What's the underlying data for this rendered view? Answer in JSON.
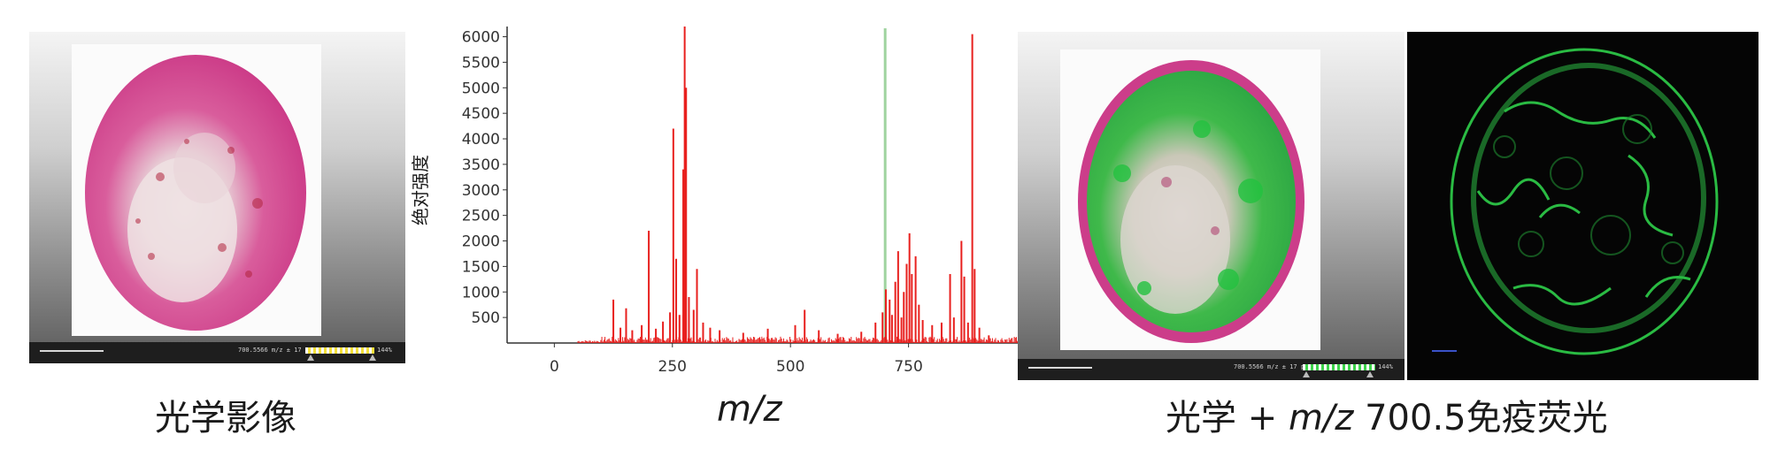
{
  "panels": {
    "optical": {
      "caption": "光学影像",
      "status_text": "700.5566 m/z ± 17 ppm",
      "colorbar_percent": "144%",
      "colorbar_gradient": [
        "#ffffff",
        "#f6e03a"
      ]
    },
    "overlay": {
      "caption_prefix": "光学 + ",
      "caption_mz": "m/z",
      "caption_suffix": " 700.5免疫荧光",
      "status_text": "700.5566 m/z ± 17 ppm",
      "colorbar_percent": "144%",
      "colorbar_gradient": [
        "#ffffff",
        "#3dd24a"
      ]
    },
    "if": {}
  },
  "colors": {
    "tissue_pink": "#d63a8c",
    "tissue_light": "#ead9dc",
    "signal_green": "#2fcf4a",
    "spectrum_red": "#e8201e",
    "marker_green": "#9fd39f"
  },
  "chart_data": {
    "type": "bar",
    "xlabel": "m/z",
    "ylabel": "绝对强度",
    "xlim": [
      -100,
      1000
    ],
    "ylim": [
      0,
      6200
    ],
    "x_ticks": [
      0,
      250,
      500,
      750
    ],
    "y_ticks": [
      500,
      1000,
      1500,
      2000,
      2500,
      3000,
      3500,
      4000,
      4500,
      5000,
      5500,
      6000
    ],
    "highlight_mz": 700.5,
    "peaks": [
      [
        125,
        850
      ],
      [
        140,
        300
      ],
      [
        152,
        680
      ],
      [
        165,
        250
      ],
      [
        185,
        350
      ],
      [
        200,
        2200
      ],
      [
        215,
        280
      ],
      [
        230,
        420
      ],
      [
        245,
        600
      ],
      [
        252,
        4200
      ],
      [
        258,
        1650
      ],
      [
        265,
        550
      ],
      [
        273,
        3400
      ],
      [
        276,
        6200
      ],
      [
        279,
        5000
      ],
      [
        285,
        900
      ],
      [
        295,
        650
      ],
      [
        302,
        1450
      ],
      [
        315,
        400
      ],
      [
        330,
        300
      ],
      [
        350,
        250
      ],
      [
        400,
        200
      ],
      [
        452,
        280
      ],
      [
        510,
        350
      ],
      [
        530,
        650
      ],
      [
        560,
        250
      ],
      [
        600,
        180
      ],
      [
        650,
        220
      ],
      [
        680,
        400
      ],
      [
        695,
        600
      ],
      [
        702,
        1050
      ],
      [
        710,
        850
      ],
      [
        715,
        550
      ],
      [
        722,
        1200
      ],
      [
        728,
        1800
      ],
      [
        735,
        500
      ],
      [
        740,
        1000
      ],
      [
        746,
        1550
      ],
      [
        752,
        2150
      ],
      [
        757,
        1350
      ],
      [
        765,
        1700
      ],
      [
        772,
        750
      ],
      [
        780,
        450
      ],
      [
        800,
        350
      ],
      [
        820,
        400
      ],
      [
        838,
        1350
      ],
      [
        846,
        500
      ],
      [
        862,
        2000
      ],
      [
        868,
        1300
      ],
      [
        876,
        400
      ],
      [
        885,
        6050
      ],
      [
        890,
        1450
      ],
      [
        900,
        300
      ],
      [
        920,
        150
      ]
    ]
  }
}
